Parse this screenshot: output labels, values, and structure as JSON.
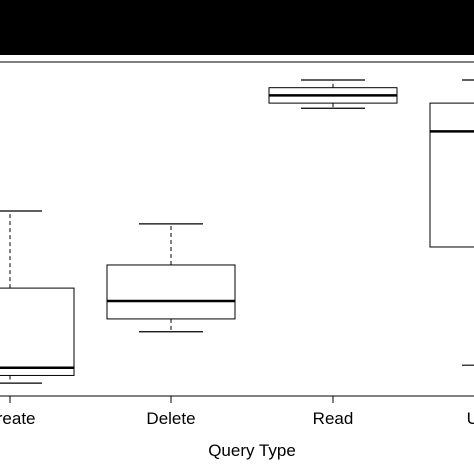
{
  "chart_data": {
    "type": "box",
    "title": "",
    "xlabel": "Query Type",
    "ylabel": "",
    "categories": [
      "Create",
      "Delete",
      "Read",
      "Update"
    ],
    "boxes": [
      {
        "category": "Create",
        "whisker_low": 5,
        "q1": 8,
        "median": 11,
        "q3": 42,
        "whisker_high": 72
      },
      {
        "category": "Delete",
        "whisker_low": 25,
        "q1": 30,
        "median": 37,
        "q3": 51,
        "whisker_high": 67
      },
      {
        "category": "Read",
        "whisker_low": 112,
        "q1": 114,
        "median": 117,
        "q3": 120,
        "whisker_high": 123
      },
      {
        "category": "Update",
        "whisker_low": 12,
        "q1": 58,
        "median": 103,
        "q3": 114,
        "whisker_high": 123
      }
    ],
    "ylim": [
      0,
      130
    ],
    "grid": false,
    "colors": {
      "box_fill": "#ffffff",
      "stroke": "#000000",
      "band": "#000000"
    }
  }
}
